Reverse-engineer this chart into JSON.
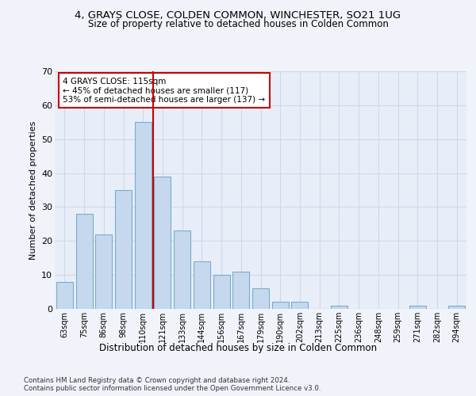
{
  "title1": "4, GRAYS CLOSE, COLDEN COMMON, WINCHESTER, SO21 1UG",
  "title2": "Size of property relative to detached houses in Colden Common",
  "xlabel": "Distribution of detached houses by size in Colden Common",
  "ylabel": "Number of detached properties",
  "categories": [
    "63sqm",
    "75sqm",
    "86sqm",
    "98sqm",
    "110sqm",
    "121sqm",
    "133sqm",
    "144sqm",
    "156sqm",
    "167sqm",
    "179sqm",
    "190sqm",
    "202sqm",
    "213sqm",
    "225sqm",
    "236sqm",
    "248sqm",
    "259sqm",
    "271sqm",
    "282sqm",
    "294sqm"
  ],
  "values": [
    8,
    28,
    22,
    35,
    55,
    39,
    23,
    14,
    10,
    11,
    6,
    2,
    2,
    0,
    1,
    0,
    0,
    0,
    1,
    0,
    1
  ],
  "bar_color": "#c5d8ed",
  "bar_edge_color": "#7aaccc",
  "vline_x": 4.5,
  "vline_color": "#cc0000",
  "annotation_text": "4 GRAYS CLOSE: 115sqm\n← 45% of detached houses are smaller (117)\n53% of semi-detached houses are larger (137) →",
  "annotation_box_color": "#ffffff",
  "annotation_box_edge_color": "#cc0000",
  "ylim": [
    0,
    70
  ],
  "yticks": [
    0,
    10,
    20,
    30,
    40,
    50,
    60,
    70
  ],
  "footer": "Contains HM Land Registry data © Crown copyright and database right 2024.\nContains public sector information licensed under the Open Government Licence v3.0.",
  "grid_color": "#d0d8e8",
  "fig_bg_color": "#f0f4fa",
  "plot_bg_color": "#e8eef8"
}
